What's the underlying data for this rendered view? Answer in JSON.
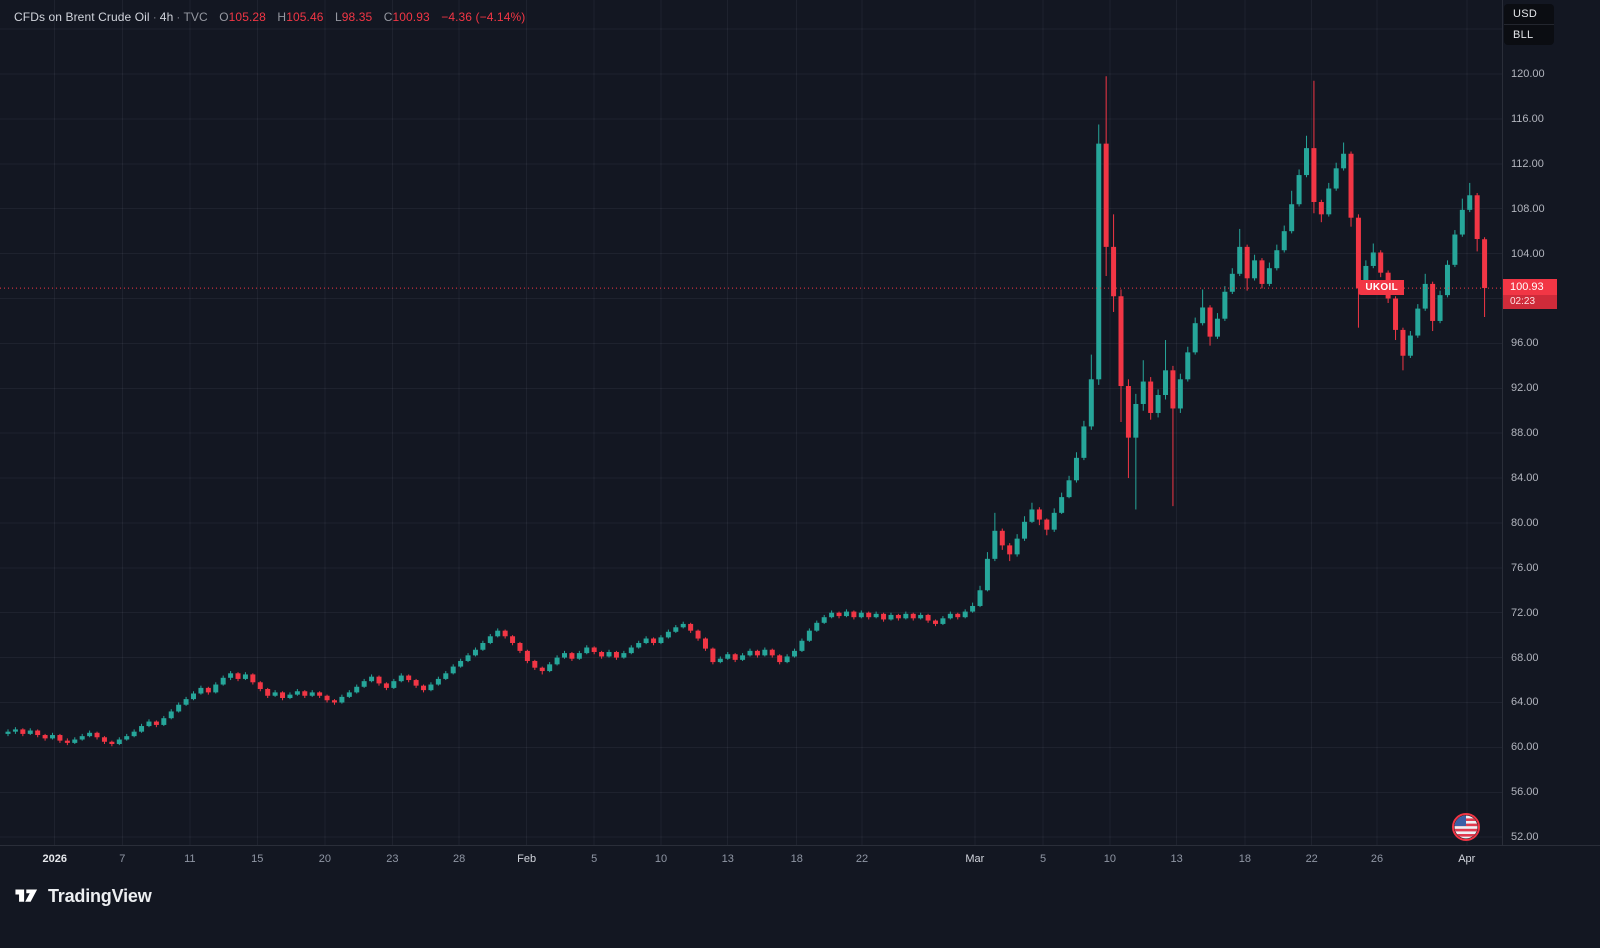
{
  "header": {
    "title": "CFDs on Brent Crude Oil",
    "sep": "·",
    "interval": "4h",
    "exchange": "TVC",
    "o_label": "O",
    "o": "105.28",
    "h_label": "H",
    "h": "105.46",
    "l_label": "L",
    "l": "98.35",
    "c_label": "C",
    "c": "100.93",
    "change": "−4.36 (−4.14%)"
  },
  "price_axis": {
    "currency": "USD",
    "unit": "BLL",
    "labels": [
      "120.00",
      "116.00",
      "112.00",
      "108.00",
      "104.00",
      "96.00",
      "92.00",
      "88.00",
      "84.00",
      "80.00",
      "76.00",
      "72.00",
      "68.00",
      "64.00",
      "60.00",
      "56.00",
      "52.00"
    ],
    "price_badge": "100.93",
    "countdown": "02:23"
  },
  "price_line_tag": "UKOIL",
  "footer": {
    "brand": "TradingView"
  },
  "colors": {
    "bg": "#131722",
    "up": "#26a69a",
    "down": "#f23645",
    "grid": "rgba(242,245,250,0.055)",
    "price_line": "#f23645",
    "axis_text": "#b2b5be"
  },
  "chart_data": {
    "type": "candlestick",
    "title": "CFDs on Brent Crude Oil",
    "symbol": "UKOIL",
    "exchange": "TVC",
    "interval": "4h",
    "currency": "USD",
    "unit": "BLL",
    "last_close": 100.93,
    "price_top": 126.6,
    "price_bottom": 51.3,
    "grid_prices": [
      124,
      120,
      116,
      112,
      108,
      104,
      100,
      96,
      92,
      88,
      84,
      80,
      76,
      72,
      68,
      64,
      60,
      56,
      52
    ],
    "x_ticks": [
      {
        "label": "2026",
        "i": 6.3,
        "major": true,
        "bold": true
      },
      {
        "label": "7",
        "i": 15.4
      },
      {
        "label": "11",
        "i": 24.5
      },
      {
        "label": "15",
        "i": 33.6
      },
      {
        "label": "20",
        "i": 42.7
      },
      {
        "label": "23",
        "i": 51.8
      },
      {
        "label": "28",
        "i": 60.8
      },
      {
        "label": "Feb",
        "i": 69.9,
        "major": true
      },
      {
        "label": "5",
        "i": 79.0
      },
      {
        "label": "10",
        "i": 88.0
      },
      {
        "label": "13",
        "i": 97.0
      },
      {
        "label": "18",
        "i": 106.3
      },
      {
        "label": "22",
        "i": 115.1
      },
      {
        "label": "Mar",
        "i": 130.3,
        "major": true
      },
      {
        "label": "5",
        "i": 139.5
      },
      {
        "label": "10",
        "i": 148.5
      },
      {
        "label": "13",
        "i": 157.5
      },
      {
        "label": "18",
        "i": 166.7
      },
      {
        "label": "22",
        "i": 175.7
      },
      {
        "label": "26",
        "i": 184.5
      },
      {
        "label": "Apr",
        "i": 196.6,
        "major": true
      }
    ],
    "candles": [
      [
        61.2,
        61.6,
        61.0,
        61.4
      ],
      [
        61.4,
        61.8,
        61.2,
        61.6
      ],
      [
        61.6,
        61.7,
        61.0,
        61.2
      ],
      [
        61.2,
        61.7,
        61.1,
        61.5
      ],
      [
        61.5,
        61.6,
        60.9,
        61.1
      ],
      [
        61.1,
        61.2,
        60.6,
        60.8
      ],
      [
        60.8,
        61.3,
        60.7,
        61.1
      ],
      [
        61.1,
        61.2,
        60.4,
        60.6
      ],
      [
        60.6,
        60.8,
        60.2,
        60.4
      ],
      [
        60.4,
        60.9,
        60.3,
        60.7
      ],
      [
        60.7,
        61.2,
        60.6,
        61.0
      ],
      [
        61.0,
        61.5,
        60.9,
        61.3
      ],
      [
        61.3,
        61.4,
        60.7,
        60.9
      ],
      [
        60.9,
        61.0,
        60.3,
        60.5
      ],
      [
        60.5,
        60.6,
        60.1,
        60.3
      ],
      [
        60.3,
        60.9,
        60.2,
        60.7
      ],
      [
        60.7,
        61.2,
        60.6,
        61.0
      ],
      [
        61.0,
        61.6,
        60.9,
        61.4
      ],
      [
        61.4,
        62.1,
        61.3,
        61.9
      ],
      [
        61.9,
        62.5,
        61.8,
        62.3
      ],
      [
        62.3,
        62.4,
        61.8,
        62.0
      ],
      [
        62.0,
        62.8,
        61.9,
        62.6
      ],
      [
        62.6,
        63.4,
        62.5,
        63.2
      ],
      [
        63.2,
        64.0,
        63.1,
        63.8
      ],
      [
        63.8,
        64.5,
        63.7,
        64.3
      ],
      [
        64.3,
        65.0,
        64.2,
        64.8
      ],
      [
        64.8,
        65.5,
        64.7,
        65.3
      ],
      [
        65.3,
        65.4,
        64.7,
        64.9
      ],
      [
        64.9,
        65.8,
        64.8,
        65.6
      ],
      [
        65.6,
        66.4,
        65.5,
        66.2
      ],
      [
        66.2,
        66.8,
        66.0,
        66.6
      ],
      [
        66.6,
        66.7,
        65.9,
        66.1
      ],
      [
        66.1,
        66.7,
        66.0,
        66.5
      ],
      [
        66.5,
        66.6,
        65.6,
        65.8
      ],
      [
        65.8,
        65.9,
        65.0,
        65.2
      ],
      [
        65.2,
        65.3,
        64.4,
        64.6
      ],
      [
        64.6,
        65.1,
        64.5,
        64.9
      ],
      [
        64.9,
        65.0,
        64.2,
        64.4
      ],
      [
        64.4,
        64.9,
        64.3,
        64.7
      ],
      [
        64.7,
        65.2,
        64.6,
        65.0
      ],
      [
        65.0,
        65.1,
        64.4,
        64.6
      ],
      [
        64.6,
        65.1,
        64.5,
        64.9
      ],
      [
        64.9,
        65.0,
        64.4,
        64.6
      ],
      [
        64.6,
        64.7,
        64.0,
        64.2
      ],
      [
        64.2,
        64.3,
        63.8,
        64.0
      ],
      [
        64.0,
        64.7,
        63.9,
        64.5
      ],
      [
        64.5,
        65.1,
        64.4,
        64.9
      ],
      [
        64.9,
        65.6,
        64.8,
        65.4
      ],
      [
        65.4,
        66.1,
        65.3,
        65.9
      ],
      [
        65.9,
        66.5,
        65.8,
        66.3
      ],
      [
        66.3,
        66.4,
        65.5,
        65.7
      ],
      [
        65.7,
        65.8,
        65.1,
        65.3
      ],
      [
        65.3,
        66.1,
        65.2,
        65.9
      ],
      [
        65.9,
        66.6,
        65.8,
        66.4
      ],
      [
        66.4,
        66.5,
        65.8,
        66.0
      ],
      [
        66.0,
        66.1,
        65.3,
        65.5
      ],
      [
        65.5,
        65.6,
        64.9,
        65.1
      ],
      [
        65.1,
        65.8,
        65.0,
        65.6
      ],
      [
        65.6,
        66.3,
        65.5,
        66.1
      ],
      [
        66.1,
        66.8,
        66.0,
        66.6
      ],
      [
        66.6,
        67.4,
        66.5,
        67.2
      ],
      [
        67.2,
        67.9,
        67.1,
        67.7
      ],
      [
        67.7,
        68.4,
        67.6,
        68.2
      ],
      [
        68.2,
        68.9,
        68.1,
        68.7
      ],
      [
        68.7,
        69.5,
        68.6,
        69.3
      ],
      [
        69.3,
        70.1,
        69.2,
        69.9
      ],
      [
        69.9,
        70.6,
        69.8,
        70.4
      ],
      [
        70.4,
        70.5,
        69.7,
        69.9
      ],
      [
        69.9,
        70.0,
        69.1,
        69.3
      ],
      [
        69.3,
        69.4,
        68.4,
        68.6
      ],
      [
        68.6,
        68.7,
        67.5,
        67.7
      ],
      [
        67.7,
        67.8,
        66.9,
        67.1
      ],
      [
        67.1,
        67.2,
        66.5,
        66.8
      ],
      [
        66.8,
        67.6,
        66.7,
        67.4
      ],
      [
        67.4,
        68.2,
        67.3,
        68.0
      ],
      [
        68.0,
        68.6,
        67.9,
        68.4
      ],
      [
        68.4,
        68.5,
        67.7,
        67.9
      ],
      [
        67.9,
        68.6,
        67.8,
        68.4
      ],
      [
        68.4,
        69.1,
        68.3,
        68.9
      ],
      [
        68.9,
        69.0,
        68.3,
        68.5
      ],
      [
        68.5,
        68.6,
        67.9,
        68.1
      ],
      [
        68.1,
        68.7,
        68.0,
        68.5
      ],
      [
        68.5,
        68.6,
        67.8,
        68.0
      ],
      [
        68.0,
        68.6,
        67.9,
        68.4
      ],
      [
        68.4,
        69.1,
        68.3,
        68.9
      ],
      [
        68.9,
        69.5,
        68.8,
        69.3
      ],
      [
        69.3,
        69.9,
        69.2,
        69.7
      ],
      [
        69.7,
        69.8,
        69.1,
        69.3
      ],
      [
        69.3,
        70.0,
        69.2,
        69.8
      ],
      [
        69.8,
        70.5,
        69.7,
        70.3
      ],
      [
        70.3,
        70.9,
        70.2,
        70.7
      ],
      [
        70.7,
        71.2,
        70.6,
        71.0
      ],
      [
        71.0,
        71.1,
        70.2,
        70.4
      ],
      [
        70.4,
        70.5,
        69.5,
        69.7
      ],
      [
        69.7,
        69.8,
        68.6,
        68.8
      ],
      [
        68.8,
        68.9,
        67.4,
        67.6
      ],
      [
        67.6,
        68.1,
        67.5,
        67.9
      ],
      [
        67.9,
        68.5,
        67.8,
        68.3
      ],
      [
        68.3,
        68.4,
        67.6,
        67.8
      ],
      [
        67.8,
        68.4,
        67.7,
        68.2
      ],
      [
        68.2,
        68.8,
        68.1,
        68.6
      ],
      [
        68.6,
        68.7,
        68.0,
        68.2
      ],
      [
        68.2,
        68.9,
        68.1,
        68.7
      ],
      [
        68.7,
        68.8,
        68.0,
        68.2
      ],
      [
        68.2,
        68.3,
        67.4,
        67.6
      ],
      [
        67.6,
        68.3,
        67.5,
        68.1
      ],
      [
        68.1,
        68.8,
        68.0,
        68.6
      ],
      [
        68.6,
        69.7,
        68.5,
        69.5
      ],
      [
        69.5,
        70.6,
        69.4,
        70.4
      ],
      [
        70.4,
        71.3,
        70.3,
        71.1
      ],
      [
        71.1,
        71.8,
        71.0,
        71.6
      ],
      [
        71.6,
        72.2,
        71.5,
        72.0
      ],
      [
        72.0,
        72.1,
        71.5,
        71.7
      ],
      [
        71.7,
        72.3,
        71.6,
        72.1
      ],
      [
        72.1,
        72.2,
        71.4,
        71.6
      ],
      [
        71.6,
        72.2,
        71.5,
        72.0
      ],
      [
        72.0,
        72.1,
        71.4,
        71.6
      ],
      [
        71.6,
        72.1,
        71.5,
        71.9
      ],
      [
        71.9,
        72.0,
        71.2,
        71.4
      ],
      [
        71.4,
        72.0,
        71.3,
        71.8
      ],
      [
        71.8,
        71.9,
        71.3,
        71.5
      ],
      [
        71.5,
        72.1,
        71.4,
        71.9
      ],
      [
        71.9,
        72.0,
        71.3,
        71.5
      ],
      [
        71.5,
        72.0,
        71.4,
        71.8
      ],
      [
        71.8,
        71.9,
        71.1,
        71.3
      ],
      [
        71.3,
        71.4,
        70.8,
        71.0
      ],
      [
        71.0,
        71.7,
        70.9,
        71.5
      ],
      [
        71.5,
        72.1,
        71.4,
        71.9
      ],
      [
        71.9,
        72.0,
        71.4,
        71.6
      ],
      [
        71.6,
        72.3,
        71.5,
        72.1
      ],
      [
        72.1,
        72.9,
        72.0,
        72.6
      ],
      [
        72.6,
        74.4,
        72.5,
        74.0
      ],
      [
        74.0,
        77.4,
        73.9,
        76.8
      ],
      [
        76.8,
        80.9,
        76.6,
        79.3
      ],
      [
        79.3,
        79.5,
        77.6,
        78.0
      ],
      [
        78.0,
        78.2,
        76.6,
        77.2
      ],
      [
        77.2,
        79.0,
        77.0,
        78.6
      ],
      [
        78.6,
        80.6,
        78.4,
        80.1
      ],
      [
        80.1,
        81.8,
        80.0,
        81.2
      ],
      [
        81.2,
        81.4,
        79.8,
        80.3
      ],
      [
        80.3,
        80.4,
        78.9,
        79.4
      ],
      [
        79.4,
        81.3,
        79.2,
        80.9
      ],
      [
        80.9,
        82.7,
        80.8,
        82.3
      ],
      [
        82.3,
        84.2,
        82.2,
        83.8
      ],
      [
        83.8,
        86.3,
        83.6,
        85.8
      ],
      [
        85.8,
        89.1,
        85.6,
        88.6
      ],
      [
        88.6,
        95.0,
        88.3,
        92.8
      ],
      [
        92.8,
        115.5,
        92.3,
        113.8
      ],
      [
        113.8,
        119.8,
        102.0,
        104.6
      ],
      [
        104.6,
        107.5,
        98.8,
        100.2
      ],
      [
        100.2,
        100.8,
        89.0,
        92.2
      ],
      [
        92.2,
        92.8,
        84.0,
        87.6
      ],
      [
        87.6,
        91.5,
        81.2,
        90.6
      ],
      [
        90.6,
        94.5,
        90.0,
        92.6
      ],
      [
        92.6,
        93.0,
        89.2,
        89.8
      ],
      [
        89.8,
        91.9,
        89.4,
        91.4
      ],
      [
        91.4,
        96.3,
        91.0,
        93.6
      ],
      [
        93.6,
        94.0,
        81.5,
        90.2
      ],
      [
        90.2,
        93.3,
        89.8,
        92.8
      ],
      [
        92.8,
        95.7,
        92.6,
        95.2
      ],
      [
        95.2,
        98.3,
        95.0,
        97.8
      ],
      [
        97.8,
        100.8,
        97.6,
        99.2
      ],
      [
        99.2,
        99.4,
        95.8,
        96.6
      ],
      [
        96.6,
        98.7,
        96.4,
        98.2
      ],
      [
        98.2,
        101.1,
        98.0,
        100.6
      ],
      [
        100.6,
        102.7,
        100.4,
        102.2
      ],
      [
        102.2,
        106.2,
        102.0,
        104.6
      ],
      [
        104.6,
        104.8,
        100.7,
        101.8
      ],
      [
        101.8,
        103.9,
        101.6,
        103.4
      ],
      [
        103.4,
        103.6,
        100.9,
        101.3
      ],
      [
        101.3,
        103.2,
        101.1,
        102.7
      ],
      [
        102.7,
        104.8,
        102.5,
        104.3
      ],
      [
        104.3,
        106.5,
        104.1,
        106.0
      ],
      [
        106.0,
        109.6,
        105.8,
        108.4
      ],
      [
        108.4,
        111.5,
        108.2,
        111.0
      ],
      [
        111.0,
        114.5,
        110.8,
        113.4
      ],
      [
        113.4,
        119.4,
        107.6,
        108.6
      ],
      [
        108.6,
        108.8,
        106.8,
        107.5
      ],
      [
        107.5,
        110.3,
        107.3,
        109.8
      ],
      [
        109.8,
        112.1,
        109.6,
        111.6
      ],
      [
        111.6,
        113.9,
        111.4,
        112.9
      ],
      [
        112.9,
        113.1,
        106.4,
        107.2
      ],
      [
        107.2,
        107.5,
        97.4,
        100.9
      ],
      [
        100.9,
        103.4,
        100.7,
        102.9
      ],
      [
        102.9,
        104.9,
        102.7,
        104.1
      ],
      [
        104.1,
        104.3,
        101.9,
        102.3
      ],
      [
        102.3,
        102.5,
        99.6,
        100.0
      ],
      [
        100.0,
        100.2,
        96.3,
        97.2
      ],
      [
        97.2,
        97.4,
        93.6,
        94.9
      ],
      [
        94.9,
        97.1,
        94.7,
        96.7
      ],
      [
        96.7,
        99.5,
        96.5,
        99.1
      ],
      [
        99.1,
        102.2,
        98.9,
        101.3
      ],
      [
        101.3,
        101.5,
        97.1,
        98.0
      ],
      [
        98.0,
        100.7,
        97.8,
        100.3
      ],
      [
        100.3,
        103.4,
        100.1,
        103.0
      ],
      [
        103.0,
        106.1,
        102.8,
        105.7
      ],
      [
        105.7,
        108.9,
        105.5,
        107.9
      ],
      [
        107.9,
        110.3,
        107.7,
        109.2
      ],
      [
        109.2,
        109.4,
        104.2,
        105.3
      ],
      [
        105.28,
        105.46,
        98.35,
        100.93
      ]
    ]
  }
}
